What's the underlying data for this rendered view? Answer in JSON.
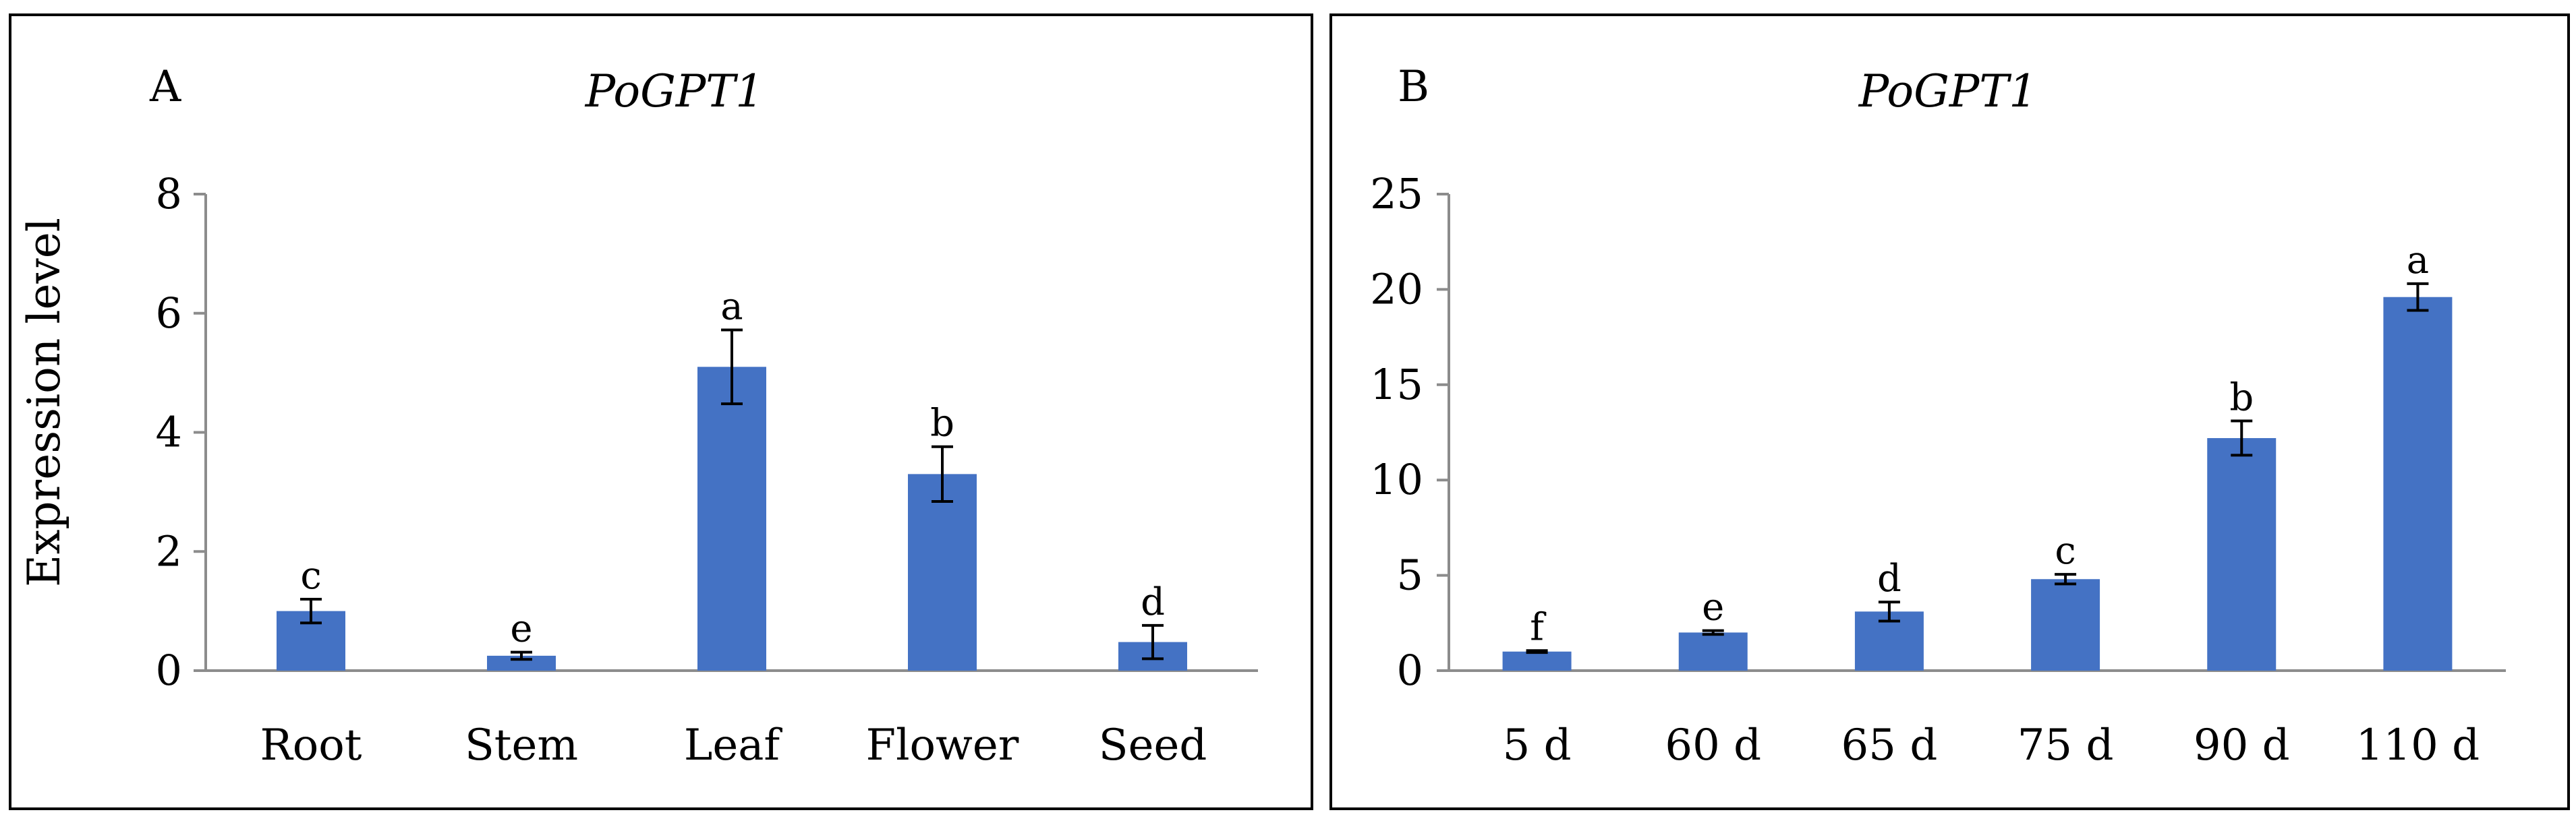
{
  "chart_data": [
    {
      "type": "bar",
      "panel": "A",
      "title": "PoGPT1",
      "ylabel": "Expression level",
      "xlabel": "",
      "ylim": [
        0,
        8
      ],
      "yticks": [
        0,
        2,
        4,
        6,
        8
      ],
      "categories": [
        "Root",
        "Stem",
        "Leaf",
        "Flower",
        "Seed"
      ],
      "values": [
        1.0,
        0.25,
        5.1,
        3.3,
        0.48
      ],
      "errors": [
        0.2,
        0.06,
        0.62,
        0.46,
        0.28
      ],
      "significance": [
        "c",
        "e",
        "a",
        "b",
        "d"
      ],
      "bar_color": "#4472c4"
    },
    {
      "type": "bar",
      "panel": "B",
      "title": "PoGPT1",
      "ylabel": "",
      "xlabel": "",
      "ylim": [
        0,
        25
      ],
      "yticks": [
        0,
        5,
        10,
        15,
        20,
        25
      ],
      "categories": [
        "5 d",
        "60 d",
        "65 d",
        "75 d",
        "90 d",
        "110 d"
      ],
      "values": [
        1.0,
        2.0,
        3.1,
        4.8,
        12.2,
        19.6
      ],
      "errors": [
        0.05,
        0.1,
        0.5,
        0.25,
        0.9,
        0.7
      ],
      "significance": [
        "f",
        "e",
        "d",
        "c",
        "b",
        "a"
      ],
      "bar_color": "#4472c4"
    }
  ]
}
